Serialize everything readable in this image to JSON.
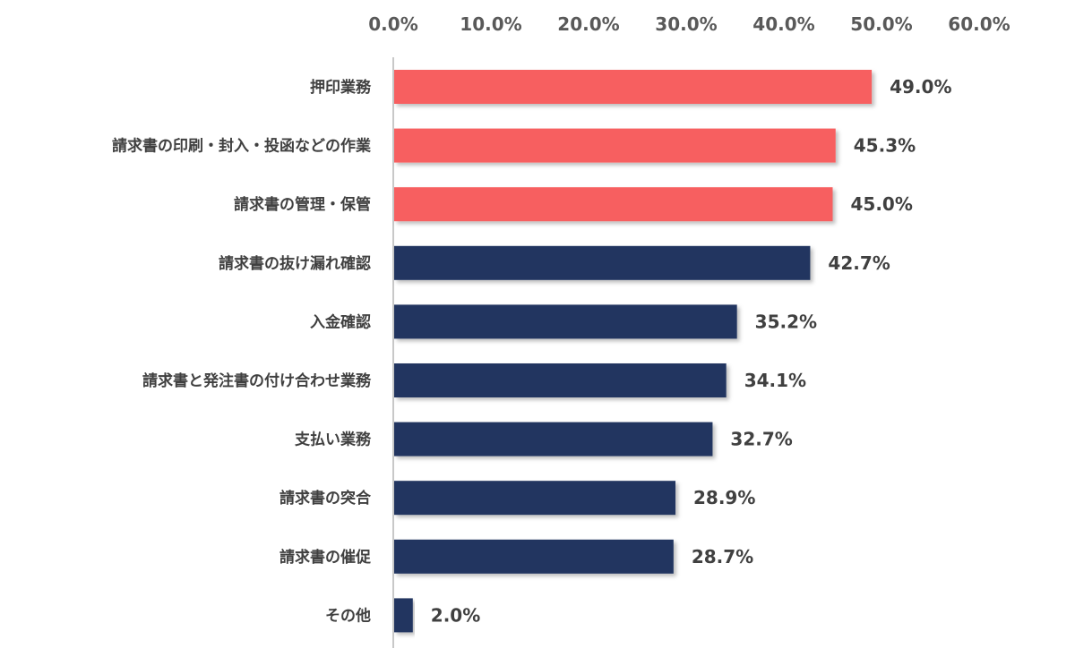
{
  "chart_data": {
    "type": "bar",
    "orientation": "horizontal",
    "categories": [
      "押印業務",
      "請求書の印刷・封入・投函などの作業",
      "請求書の管理・保管",
      "請求書の抜け漏れ確認",
      "入金確認",
      "請求書と発注書の付け合わせ業務",
      "支払い業務",
      "請求書の突合",
      "請求書の催促",
      "その他"
    ],
    "values": [
      49.0,
      45.3,
      45.0,
      42.7,
      35.2,
      34.1,
      32.7,
      28.9,
      28.7,
      2.0
    ],
    "value_labels": [
      "49.0%",
      "45.3%",
      "45.0%",
      "42.7%",
      "35.2%",
      "34.1%",
      "32.7%",
      "28.9%",
      "28.7%",
      "2.0%"
    ],
    "highlight": [
      true,
      true,
      true,
      false,
      false,
      false,
      false,
      false,
      false,
      false
    ],
    "xlim": [
      0,
      60
    ],
    "xticks": [
      0,
      10,
      20,
      30,
      40,
      50,
      60
    ],
    "xtick_labels": [
      "0.0%",
      "10.0%",
      "20.0%",
      "30.0%",
      "40.0%",
      "50.0%",
      "60.0%"
    ],
    "axis_position": "top",
    "grid": false,
    "colors": {
      "highlight": "#F75F60",
      "normal": "#213560"
    }
  }
}
